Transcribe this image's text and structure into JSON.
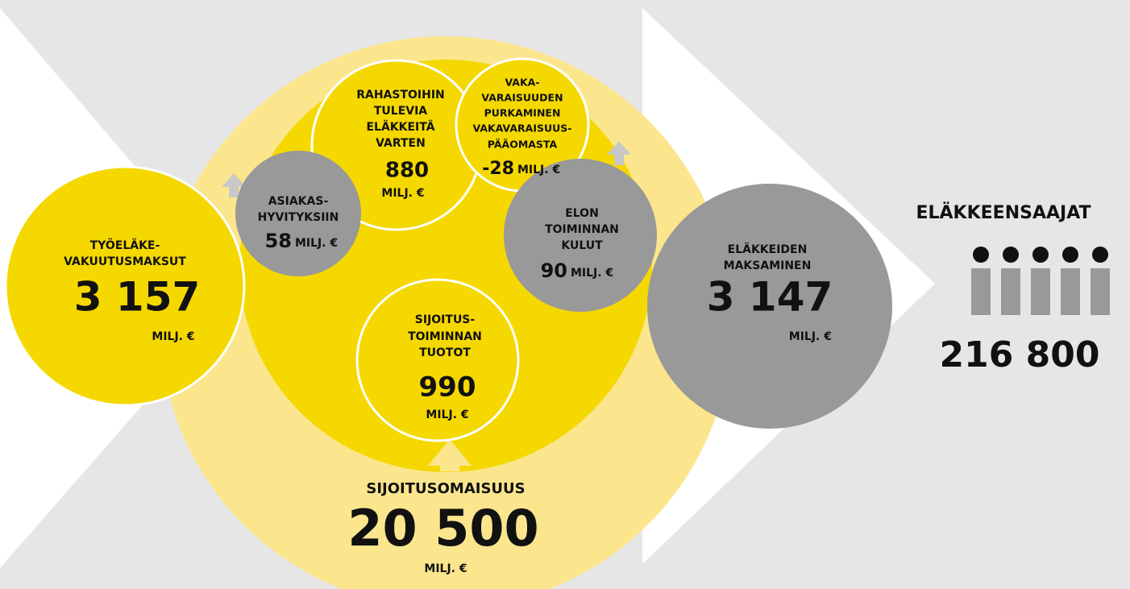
{
  "nodes": [
    {
      "label": [
        "TYÖELÄKE-",
        "VAKUUTUSMAKSUT"
      ],
      "value": "3 157",
      "unit": "MILJ. €"
    },
    {
      "label": [
        "RAHASTOIHIN",
        "TULEVIA",
        "ELÄKKEITÄ",
        "VARTEN"
      ],
      "value": "880",
      "unit": "MILJ. €"
    },
    {
      "label": [
        "VAKA-",
        "VARAISUUDEN",
        "PURKAMINEN",
        "VAKAVARAISUUS-",
        "PÄÄOMASTA"
      ],
      "value": "-28",
      "unit": "MILJ. €"
    },
    {
      "label": [
        "ASIAKAS-",
        "HYVITYKSIIN"
      ],
      "value": "58",
      "unit": "MILJ. €"
    },
    {
      "label": [
        "ELON",
        "TOIMINNAN",
        "KULUT"
      ],
      "value": "90",
      "unit": "MILJ. €"
    },
    {
      "label": [
        "SIJOITUS-",
        "TOIMINNAN",
        "TUOTOT"
      ],
      "value": "990",
      "unit": "MILJ. €"
    },
    {
      "label": [
        "ELÄKKEIDEN",
        "MAKSAMINEN"
      ],
      "value": "3 147",
      "unit": "MILJ. €"
    }
  ],
  "assets": {
    "label": "SIJOITUSOMAISUUS",
    "value": "20 500",
    "unit": "MILJ. €"
  },
  "pensioners": {
    "label": "ELÄKKEENSAAJAT",
    "value": "216 800"
  }
}
